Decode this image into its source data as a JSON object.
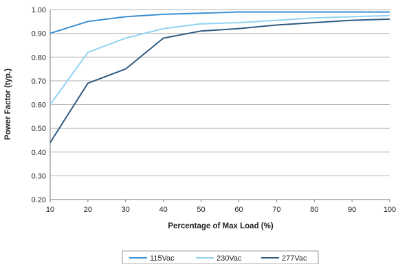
{
  "chart_data": {
    "type": "line",
    "xlabel": "Percentage of Max Load (%)",
    "ylabel": "Power Factor (typ.)",
    "x": [
      10,
      20,
      30,
      40,
      50,
      60,
      70,
      80,
      90,
      100
    ],
    "xlim": [
      10,
      100
    ],
    "ylim": [
      0.2,
      1.0
    ],
    "yticks": [
      "0.20",
      "0.30",
      "0.40",
      "0.50",
      "0.60",
      "0.70",
      "0.80",
      "0.90",
      "1.00"
    ],
    "xticks": [
      "10",
      "20",
      "30",
      "40",
      "50",
      "60",
      "70",
      "80",
      "90",
      "100"
    ],
    "grid": "horizontal",
    "legend_position": "bottom",
    "series": [
      {
        "name": "115Vac",
        "color": "#3a8fd2",
        "values": [
          0.9,
          0.95,
          0.97,
          0.98,
          0.985,
          0.99,
          0.99,
          0.99,
          0.99,
          0.99
        ]
      },
      {
        "name": "230Vac",
        "color": "#8fd3f2",
        "values": [
          0.6,
          0.82,
          0.88,
          0.92,
          0.94,
          0.945,
          0.955,
          0.965,
          0.97,
          0.975
        ]
      },
      {
        "name": "277Vac",
        "color": "#2d5a82",
        "values": [
          0.44,
          0.69,
          0.75,
          0.88,
          0.91,
          0.92,
          0.935,
          0.945,
          0.955,
          0.96
        ]
      }
    ]
  }
}
